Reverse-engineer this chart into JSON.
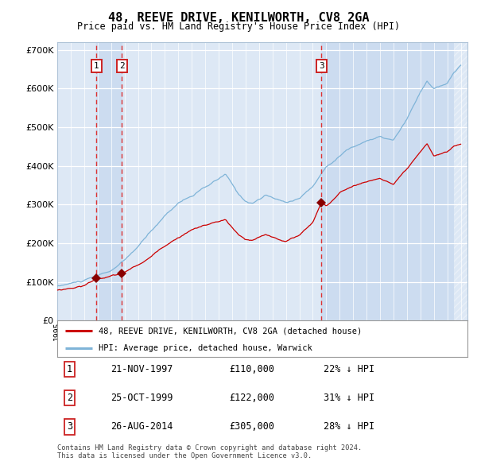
{
  "title": "48, REEVE DRIVE, KENILWORTH, CV8 2GA",
  "subtitle": "Price paid vs. HM Land Registry's House Price Index (HPI)",
  "legend_line1": "48, REEVE DRIVE, KENILWORTH, CV8 2GA (detached house)",
  "legend_line2": "HPI: Average price, detached house, Warwick",
  "red_line_color": "#cc0000",
  "blue_line_color": "#7fb4d8",
  "transaction_color": "#880000",
  "dashed_line_color": "#dd3333",
  "highlight_color": "#dde8f5",
  "plot_bg_color": "#dde8f5",
  "grid_color": "#ffffff",
  "hatch_color": "#c0cfe0",
  "transactions": [
    {
      "id": 1,
      "date": "21-NOV-1997",
      "year": 1997.9,
      "price": 110000,
      "label": "22% ↓ HPI"
    },
    {
      "id": 2,
      "date": "25-OCT-1999",
      "year": 1999.8,
      "price": 122000,
      "label": "31% ↓ HPI"
    },
    {
      "id": 3,
      "date": "26-AUG-2014",
      "year": 2014.65,
      "price": 305000,
      "label": "28% ↓ HPI"
    }
  ],
  "ymax": 720000,
  "yticks": [
    0,
    100000,
    200000,
    300000,
    400000,
    500000,
    600000,
    700000
  ],
  "hpi_anchors": [
    [
      1995.0,
      88000
    ],
    [
      1996.0,
      95000
    ],
    [
      1997.0,
      102000
    ],
    [
      1998.0,
      112000
    ],
    [
      1999.0,
      125000
    ],
    [
      2000.0,
      150000
    ],
    [
      2001.0,
      185000
    ],
    [
      2002.0,
      225000
    ],
    [
      2003.0,
      265000
    ],
    [
      2004.0,
      300000
    ],
    [
      2005.0,
      318000
    ],
    [
      2006.0,
      338000
    ],
    [
      2007.0,
      358000
    ],
    [
      2007.5,
      370000
    ],
    [
      2008.5,
      315000
    ],
    [
      2009.0,
      300000
    ],
    [
      2009.5,
      295000
    ],
    [
      2010.5,
      315000
    ],
    [
      2011.0,
      308000
    ],
    [
      2012.0,
      295000
    ],
    [
      2013.0,
      308000
    ],
    [
      2014.0,
      338000
    ],
    [
      2015.0,
      390000
    ],
    [
      2016.0,
      420000
    ],
    [
      2016.5,
      435000
    ],
    [
      2017.5,
      450000
    ],
    [
      2018.0,
      460000
    ],
    [
      2019.0,
      468000
    ],
    [
      2020.0,
      458000
    ],
    [
      2021.0,
      510000
    ],
    [
      2022.0,
      578000
    ],
    [
      2022.5,
      608000
    ],
    [
      2023.0,
      588000
    ],
    [
      2024.0,
      598000
    ],
    [
      2024.5,
      628000
    ],
    [
      2025.0,
      645000
    ]
  ],
  "red_anchors": [
    [
      1995.0,
      78000
    ],
    [
      1996.0,
      84000
    ],
    [
      1997.0,
      91000
    ],
    [
      1997.9,
      110000
    ],
    [
      1998.5,
      113000
    ],
    [
      1999.0,
      116000
    ],
    [
      1999.8,
      122000
    ],
    [
      2001.0,
      143000
    ],
    [
      2002.0,
      165000
    ],
    [
      2003.0,
      195000
    ],
    [
      2004.0,
      218000
    ],
    [
      2005.0,
      238000
    ],
    [
      2006.0,
      250000
    ],
    [
      2007.0,
      258000
    ],
    [
      2007.5,
      262000
    ],
    [
      2008.5,
      220000
    ],
    [
      2009.0,
      208000
    ],
    [
      2009.5,
      205000
    ],
    [
      2010.5,
      218000
    ],
    [
      2011.0,
      212000
    ],
    [
      2012.0,
      202000
    ],
    [
      2013.0,
      218000
    ],
    [
      2014.0,
      252000
    ],
    [
      2014.65,
      305000
    ],
    [
      2015.0,
      295000
    ],
    [
      2016.0,
      328000
    ],
    [
      2017.0,
      348000
    ],
    [
      2018.0,
      358000
    ],
    [
      2019.0,
      368000
    ],
    [
      2020.0,
      352000
    ],
    [
      2021.0,
      388000
    ],
    [
      2022.0,
      428000
    ],
    [
      2022.5,
      448000
    ],
    [
      2023.0,
      418000
    ],
    [
      2024.0,
      428000
    ],
    [
      2024.5,
      442000
    ],
    [
      2025.0,
      448000
    ]
  ],
  "footnote1": "Contains HM Land Registry data © Crown copyright and database right 2024.",
  "footnote2": "This data is licensed under the Open Government Licence v3.0.",
  "hatch_start": 2024.5,
  "xmin": 1995.0,
  "xmax": 2025.5
}
